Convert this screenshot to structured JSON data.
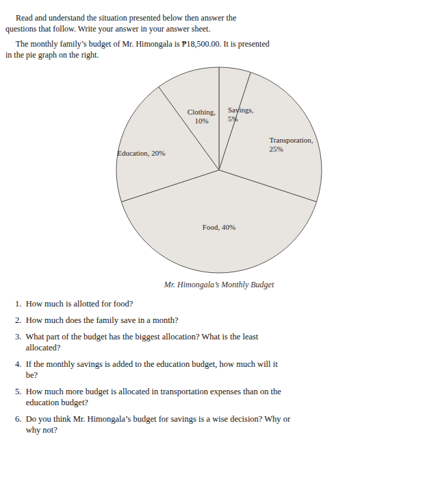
{
  "chart_data": {
    "type": "pie",
    "title": "Mr. Himongala’s Monthly Budget",
    "categories": [
      "Savings,\n5%",
      "Transporation,\n25%",
      "Food, 40%",
      "Education, 20%",
      "Clothing,\n10%"
    ],
    "values": [
      5,
      25,
      40,
      20,
      10
    ],
    "colors": [
      "#e8e4df",
      "#e8e4df",
      "#e8e4df",
      "#e8e4df",
      "#e8e4df"
    ],
    "annotations": [
      "     Read and understand the situation presented below then answer the",
      "questions that follow. Write your answer in your answer sheet.",
      "     The monthly family’s budget of Mr. Himongala is ₱18,500.00. It is presented",
      "in the pie graph on the right.",
      "1.  How much is allotted for food?",
      "2.  How much does the family save in a month?",
      "3.  What part of the budget has the biggest allocation? What is the least",
      "     allocated?",
      "4.  If the monthly savings is added to the education budget, how much will it",
      "     be?",
      "5.  How much more budget is allocated in transportation expenses than on the",
      "     education budget?",
      "6.  Do you think Mr. Himongala’s budget for savings is a wise decision? Why or",
      "     why not?"
    ]
  }
}
